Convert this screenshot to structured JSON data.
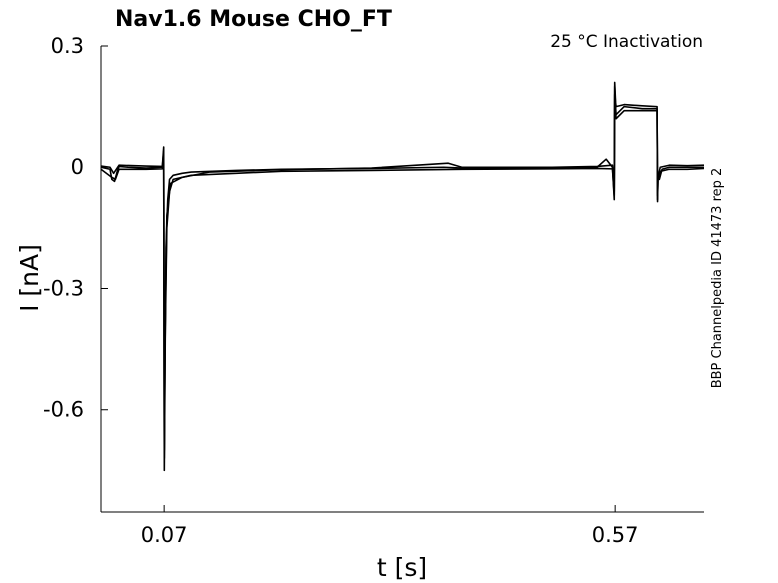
{
  "chart_data": {
    "type": "line",
    "title": "Nav1.6  Mouse  CHO_FT",
    "annotation": "25 °C  Inactivation",
    "side_label": "BBP Channelpedia ID 41473 rep 2",
    "xlabel": "t [s]",
    "ylabel": "I [nA]",
    "xlim": [
      0.0,
      0.6685
    ],
    "ylim": [
      -0.853,
      0.3
    ],
    "xticks": [
      0.07,
      0.57
    ],
    "xtick_labels": [
      "0.07",
      "0.57"
    ],
    "yticks": [
      0.3,
      0.0,
      -0.3,
      -0.6
    ],
    "ytick_labels": [
      "0.3",
      "0",
      "-0.3",
      "-0.6"
    ],
    "grid": false,
    "legend": "none",
    "line_color": "#000000",
    "series": [
      {
        "x": [
          0.0,
          0.01,
          0.012,
          0.015,
          0.018,
          0.02,
          0.03,
          0.05,
          0.068,
          0.0695,
          0.0702,
          0.071,
          0.072,
          0.074,
          0.076,
          0.08,
          0.09,
          0.1,
          0.15,
          0.2,
          0.3,
          0.38,
          0.4,
          0.5,
          0.55,
          0.56,
          0.567,
          0.569,
          0.5695,
          0.5705,
          0.571,
          0.58,
          0.6,
          0.6165,
          0.617,
          0.6175,
          0.619,
          0.622,
          0.63,
          0.65,
          0.6685
        ],
        "y": [
          0.0,
          -0.005,
          -0.03,
          -0.035,
          -0.01,
          0.002,
          0.0,
          -0.002,
          0.0,
          0.04,
          -0.75,
          -0.5,
          -0.2,
          -0.08,
          -0.03,
          -0.02,
          -0.015,
          -0.012,
          -0.008,
          -0.005,
          -0.003,
          0.0,
          -0.002,
          -0.003,
          0.0,
          0.02,
          0.0,
          -0.08,
          0.2,
          0.15,
          0.13,
          0.15,
          0.145,
          0.145,
          -0.08,
          -0.02,
          -0.03,
          -0.005,
          0.0,
          0.0,
          0.0
        ]
      },
      {
        "x": [
          0.0,
          0.012,
          0.016,
          0.02,
          0.05,
          0.068,
          0.0695,
          0.0702,
          0.071,
          0.073,
          0.076,
          0.08,
          0.1,
          0.15,
          0.2,
          0.3,
          0.4,
          0.5,
          0.55,
          0.567,
          0.569,
          0.5695,
          0.5705,
          0.571,
          0.58,
          0.6,
          0.6165,
          0.617,
          0.6175,
          0.62,
          0.63,
          0.65,
          0.6685
        ],
        "y": [
          -0.005,
          -0.025,
          -0.03,
          -0.005,
          -0.005,
          -0.004,
          0.03,
          -0.72,
          -0.45,
          -0.15,
          -0.06,
          -0.03,
          -0.02,
          -0.015,
          -0.01,
          -0.008,
          -0.005,
          -0.004,
          -0.003,
          -0.004,
          -0.07,
          0.18,
          0.14,
          0.12,
          0.14,
          0.14,
          0.14,
          -0.07,
          -0.03,
          -0.01,
          -0.005,
          -0.005,
          -0.003
        ]
      },
      {
        "x": [
          0.0,
          0.01,
          0.014,
          0.02,
          0.05,
          0.068,
          0.0695,
          0.0702,
          0.071,
          0.073,
          0.077,
          0.09,
          0.12,
          0.2,
          0.3,
          0.385,
          0.4,
          0.5,
          0.55,
          0.567,
          0.569,
          0.5695,
          0.5705,
          0.571,
          0.58,
          0.6,
          0.6165,
          0.617,
          0.6175,
          0.62,
          0.63,
          0.65,
          0.6685
        ],
        "y": [
          0.003,
          0.0,
          -0.015,
          0.005,
          0.003,
          0.002,
          0.05,
          -0.7,
          -0.42,
          -0.12,
          -0.04,
          -0.025,
          -0.012,
          -0.006,
          -0.002,
          0.01,
          0.0,
          0.0,
          0.002,
          0.005,
          -0.06,
          0.21,
          0.16,
          0.15,
          0.155,
          0.152,
          0.15,
          -0.085,
          -0.025,
          0.0,
          0.005,
          0.004,
          0.005
        ]
      }
    ]
  }
}
